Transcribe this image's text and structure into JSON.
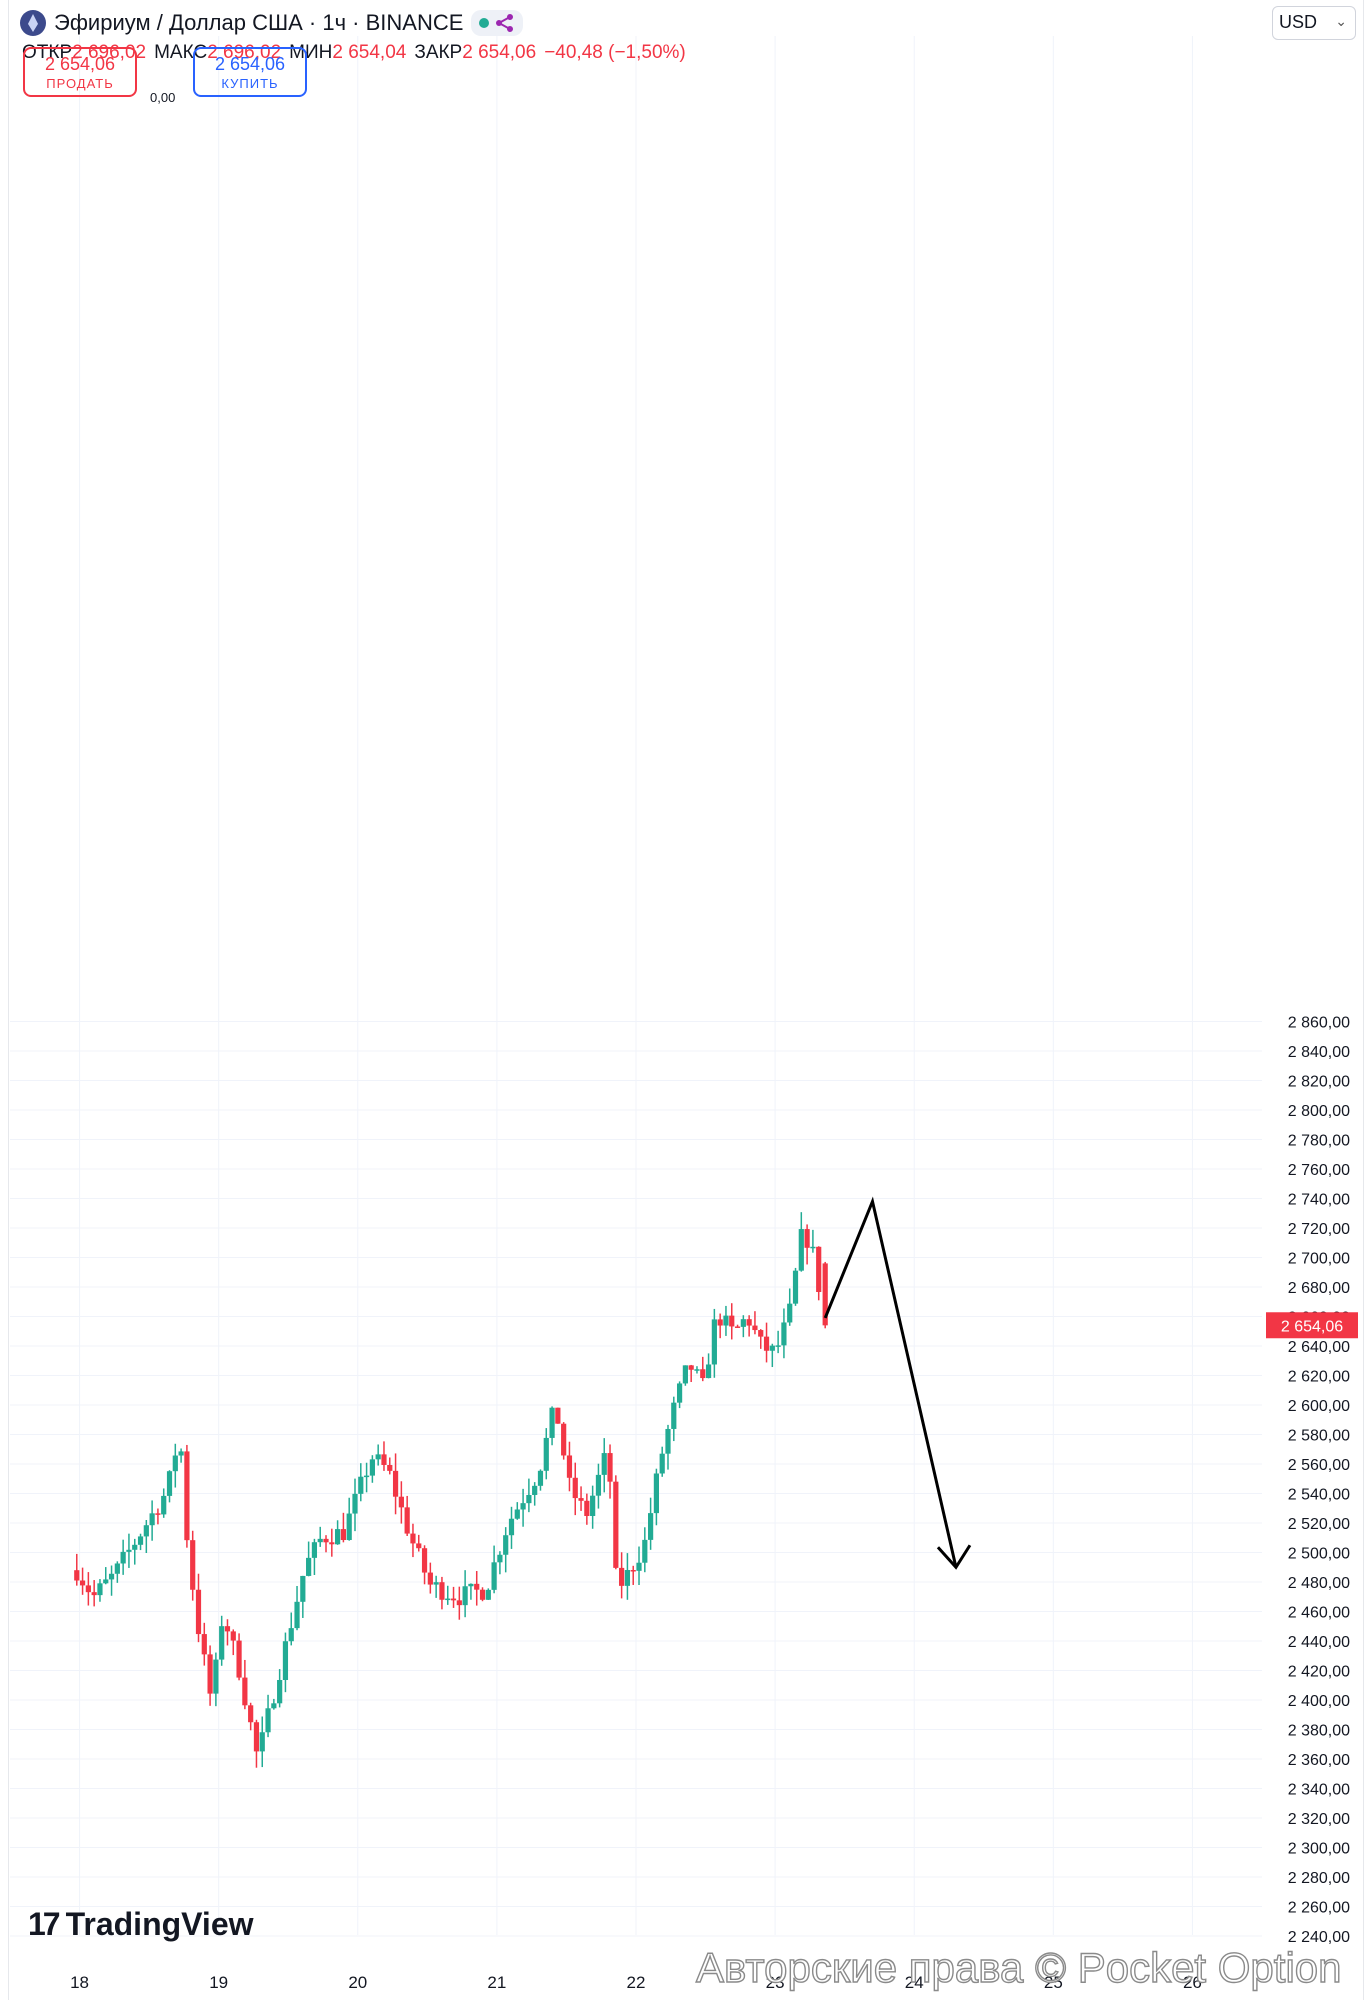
{
  "header": {
    "symbol": "Эфириум / Доллар США · 1ч · BINANCE",
    "status_icons": [
      "market-open-dot",
      "network-icon"
    ],
    "open_label": "ОТКР",
    "open_value": "2 696,02",
    "high_label": "МАКС",
    "high_value": "2 696,02",
    "low_label": "МИН",
    "low_value": "2 654,04",
    "close_label": "ЗАКР",
    "close_value": "2 654,06",
    "change": "−40,48 (−1,50%)"
  },
  "trade": {
    "sell_price": "2 654,06",
    "sell_label": "ПРОДАТЬ",
    "spread": "0,00",
    "buy_price": "2 654,06",
    "buy_label": "КУПИТЬ"
  },
  "currency": "USD",
  "last_price_tag": "2 654,06",
  "branding": {
    "logo": "TradingView",
    "watermark": "Авторские права © Pocket Option"
  },
  "colors": {
    "up": "#22ab94",
    "down": "#f23645",
    "grid": "#f0f3fa",
    "text": "#131722"
  },
  "chart_data": {
    "type": "candlestick",
    "interval": "1h",
    "ylim": [
      2230,
      2880
    ],
    "y_ticks": [
      "2 240,00",
      "2 260,00",
      "2 280,00",
      "2 300,00",
      "2 320,00",
      "2 340,00",
      "2 360,00",
      "2 380,00",
      "2 400,00",
      "2 420,00",
      "2 440,00",
      "2 460,00",
      "2 480,00",
      "2 500,00",
      "2 520,00",
      "2 540,00",
      "2 560,00",
      "2 580,00",
      "2 600,00",
      "2 620,00",
      "2 640,00",
      "2 660,00",
      "2 680,00",
      "2 700,00",
      "2 720,00",
      "2 740,00",
      "2 760,00",
      "2 780,00",
      "2 800,00",
      "2 820,00",
      "2 840,00",
      "2 860,00"
    ],
    "x_ticks": [
      "18",
      "19",
      "20",
      "21",
      "22",
      "23",
      "24",
      "25",
      "26"
    ],
    "last_price": 2654.06,
    "candle_anchors": [
      [
        17.98,
        2488
      ],
      [
        18.1,
        2470
      ],
      [
        18.25,
        2485
      ],
      [
        18.45,
        2515
      ],
      [
        18.63,
        2542
      ],
      [
        18.72,
        2582
      ],
      [
        18.78,
        2500
      ],
      [
        18.86,
        2445
      ],
      [
        18.95,
        2398
      ],
      [
        19.03,
        2460
      ],
      [
        19.15,
        2420
      ],
      [
        19.28,
        2360
      ],
      [
        19.45,
        2425
      ],
      [
        19.62,
        2490
      ],
      [
        19.74,
        2510
      ],
      [
        19.9,
        2514
      ],
      [
        20.1,
        2565
      ],
      [
        20.22,
        2555
      ],
      [
        20.38,
        2510
      ],
      [
        20.52,
        2478
      ],
      [
        20.72,
        2470
      ],
      [
        20.92,
        2475
      ],
      [
        21.08,
        2520
      ],
      [
        21.3,
        2555
      ],
      [
        21.42,
        2600
      ],
      [
        21.52,
        2545
      ],
      [
        21.64,
        2525
      ],
      [
        21.8,
        2570
      ],
      [
        21.86,
        2475
      ],
      [
        21.94,
        2485
      ],
      [
        22.06,
        2505
      ],
      [
        22.18,
        2565
      ],
      [
        22.28,
        2600
      ],
      [
        22.38,
        2628
      ],
      [
        22.48,
        2612
      ],
      [
        22.58,
        2662
      ],
      [
        22.7,
        2648
      ],
      [
        22.8,
        2660
      ],
      [
        22.9,
        2640
      ],
      [
        23.0,
        2635
      ],
      [
        23.1,
        2660
      ],
      [
        23.2,
        2720
      ],
      [
        23.28,
        2700
      ],
      [
        23.36,
        2654
      ]
    ],
    "annotation_arrow": {
      "points": [
        [
          23.36,
          2659
        ],
        [
          23.7,
          2738
        ],
        [
          24.3,
          2490
        ]
      ],
      "arrowhead": "down"
    }
  }
}
